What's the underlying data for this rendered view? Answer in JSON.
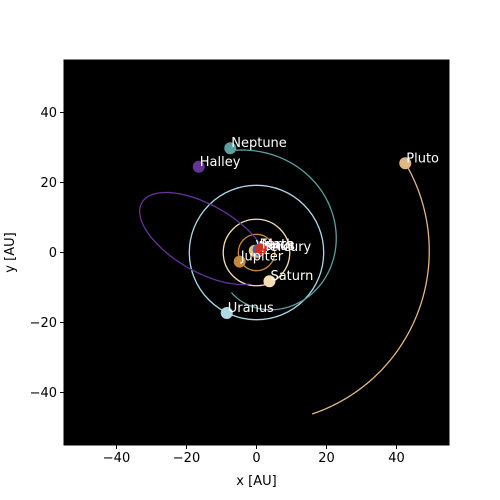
{
  "chart_data": {
    "type": "scatter",
    "title": "",
    "xlabel": "x [AU]",
    "ylabel": "y [AU]",
    "xlim": [
      -55,
      55
    ],
    "ylim": [
      -55,
      55
    ],
    "xticks": [
      -40,
      -20,
      0,
      20,
      40
    ],
    "yticks": [
      -40,
      -20,
      0,
      20,
      40
    ],
    "grid": false,
    "background": "#000000",
    "bodies": [
      {
        "name": "Mercury",
        "label": "Mercury",
        "x": 0.3,
        "y": 0.2,
        "color": "#b0b0b0",
        "orbit": {
          "type": "circle",
          "r": 0.39
        }
      },
      {
        "name": "Venus",
        "label": "Venus",
        "x": -0.5,
        "y": 0.5,
        "color": "#e8c070",
        "orbit": {
          "type": "circle",
          "r": 0.72
        }
      },
      {
        "name": "Earth",
        "label": "Earth",
        "x": 0.6,
        "y": 0.8,
        "color": "#3366cc",
        "orbit": {
          "type": "circle",
          "r": 1.0
        }
      },
      {
        "name": "Mars",
        "label": "Mars",
        "x": 1.2,
        "y": 0.9,
        "color": "#d03020",
        "orbit": {
          "type": "circle",
          "r": 1.52
        }
      },
      {
        "name": "Jupiter",
        "label": "Jupiter",
        "x": -4.8,
        "y": -2.6,
        "color": "#c8883c",
        "orbit": {
          "type": "circle",
          "r": 5.2
        }
      },
      {
        "name": "Saturn",
        "label": "Saturn",
        "x": 3.7,
        "y": -8.2,
        "color": "#f5deb3",
        "orbit": {
          "type": "circle",
          "r": 9.5
        }
      },
      {
        "name": "Uranus",
        "label": "Uranus",
        "x": -8.5,
        "y": -17.3,
        "color": "#add8e6",
        "orbit": {
          "type": "circle",
          "r": 19.2
        }
      },
      {
        "name": "Neptune",
        "label": "Neptune",
        "x": -7.5,
        "y": 29.8,
        "color": "#5f9ea0",
        "orbit": {
          "type": "spiral",
          "r0": 30.0,
          "r1": 13.5,
          "a_start_deg": 104,
          "a_end_deg": -122
        }
      },
      {
        "name": "Pluto",
        "label": "Pluto",
        "x": 42.5,
        "y": 25.5,
        "color": "#deb887",
        "orbit": {
          "type": "spiral",
          "r0": 49.6,
          "r1": 48.8,
          "a_start_deg": 31,
          "a_end_deg": -71
        }
      },
      {
        "name": "Halley",
        "label": "Halley",
        "x": -16.5,
        "y": 24.5,
        "color": "#663399",
        "orbit": {
          "type": "ellipse",
          "cx": -15,
          "cy": 4,
          "rx": 20.5,
          "ry": 9.5,
          "tilt_deg": -30,
          "t_start_deg": 40,
          "t_end_deg": 330
        }
      }
    ],
    "sun": {
      "x": 0,
      "y": 0,
      "color": "#ffcc00"
    },
    "legend": "none"
  }
}
